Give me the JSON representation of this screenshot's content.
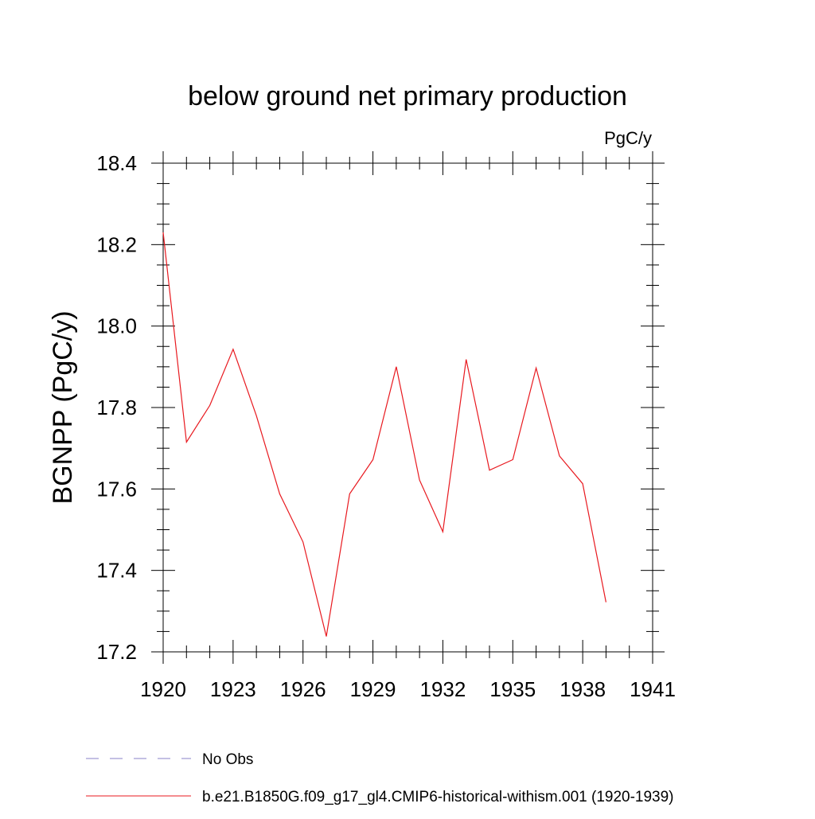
{
  "chart_data": {
    "type": "line",
    "title": "below ground net primary production",
    "units_label": "PgC/y",
    "ylabel": "BGNPP  (PgC/y)",
    "xlabel": "",
    "xlim": [
      1920,
      1941
    ],
    "ylim": [
      17.2,
      18.4
    ],
    "x_ticks": [
      1920,
      1923,
      1926,
      1929,
      1932,
      1935,
      1938,
      1941
    ],
    "y_ticks": [
      17.2,
      17.4,
      17.6,
      17.8,
      18.0,
      18.2,
      18.4
    ],
    "y_tick_labels": [
      "17.2",
      "17.4",
      "17.6",
      "17.8",
      "18.0",
      "18.2",
      "18.4"
    ],
    "grid": false,
    "legend_position": "bottom",
    "series": [
      {
        "name": "b.e21.B1850G.f09_g17_gl4.CMIP6-historical-withism.001 (1920-1939)",
        "color": "#e8191f",
        "style": "solid",
        "x": [
          1920,
          1921,
          1922,
          1923,
          1924,
          1925,
          1926,
          1927,
          1928,
          1929,
          1930,
          1931,
          1932,
          1933,
          1934,
          1935,
          1936,
          1937,
          1938,
          1939
        ],
        "y": [
          18.23,
          17.715,
          17.805,
          17.943,
          17.78,
          17.588,
          17.47,
          17.238,
          17.588,
          17.672,
          17.9,
          17.622,
          17.495,
          17.918,
          17.646,
          17.672,
          17.897,
          17.681,
          17.613,
          17.322
        ]
      }
    ],
    "legend_entries": [
      {
        "label": "No Obs",
        "color": "#8a80c8",
        "style": "dashed"
      },
      {
        "label": "b.e21.B1850G.f09_g17_gl4.CMIP6-historical-withism.001 (1920-1939)",
        "color": "#e8191f",
        "style": "solid"
      }
    ]
  }
}
